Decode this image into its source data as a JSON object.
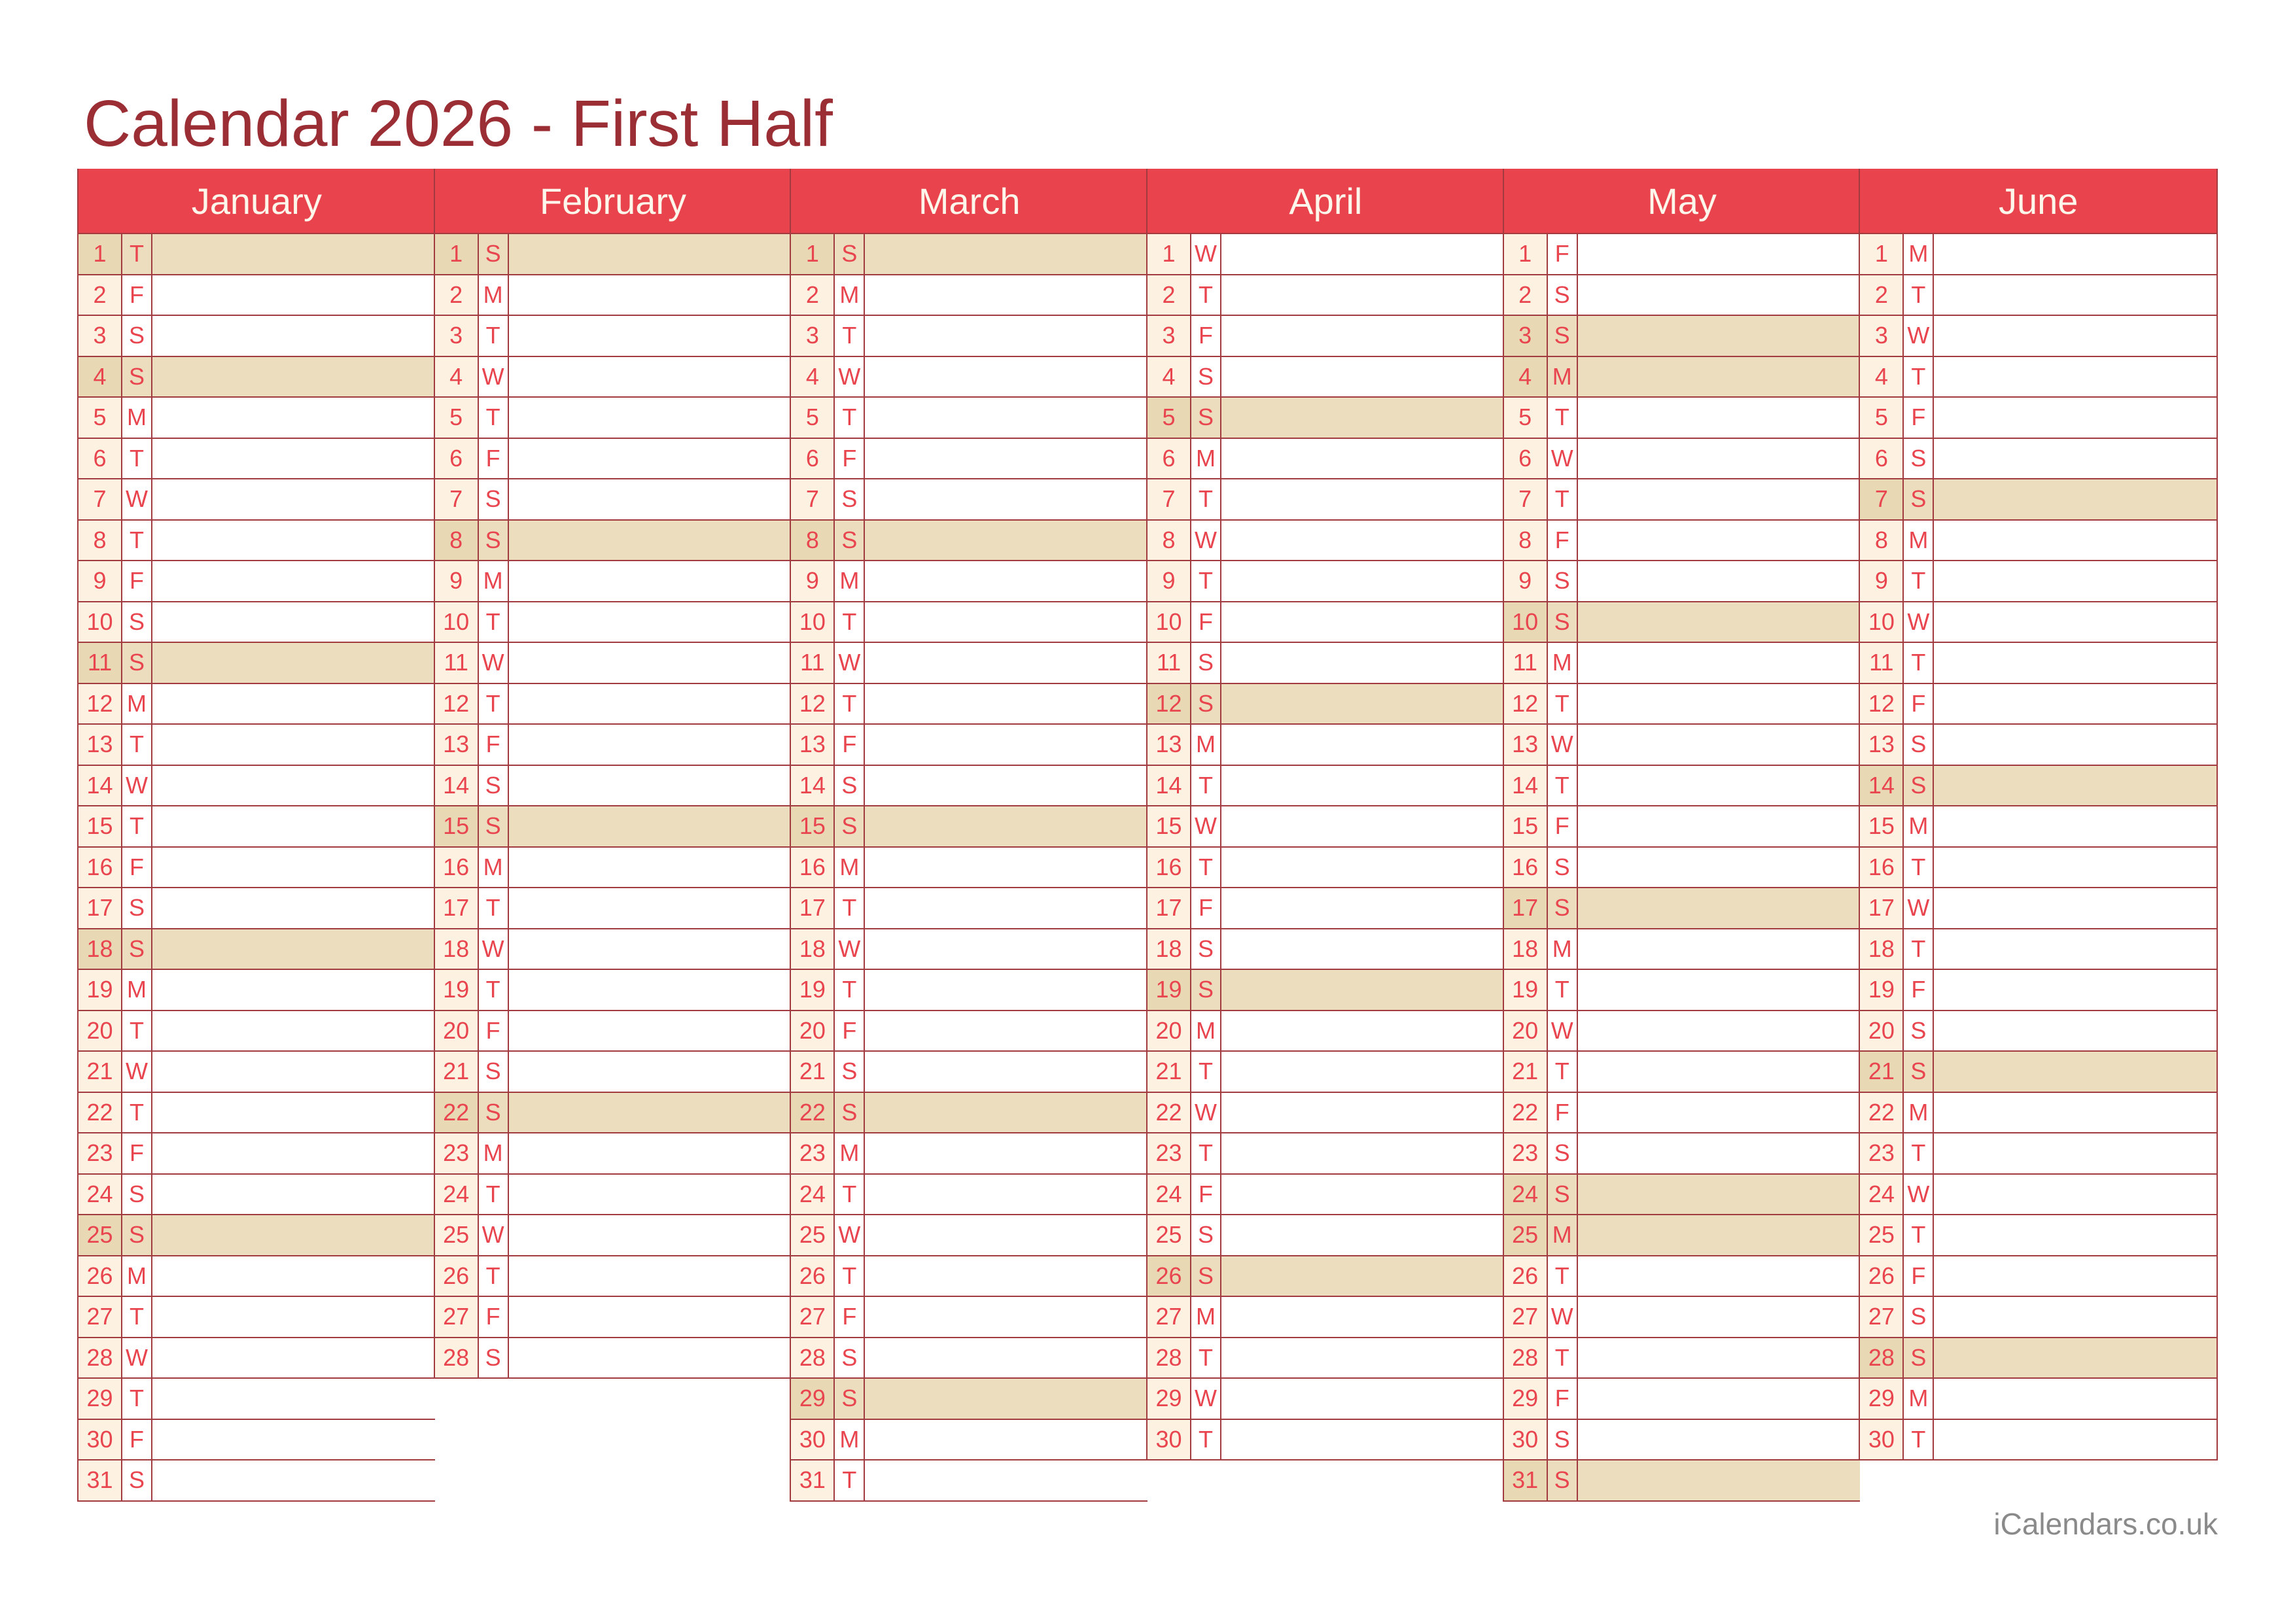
{
  "page": {
    "title": "Calendar 2026 - First Half",
    "footer": "iCalendars.co.uk"
  },
  "colors": {
    "title_text": "#9B2E34",
    "month_header_bg": "#E9434E",
    "month_header_text": "#FCF7EA",
    "grid_border": "#A23B40",
    "day_text": "#E8454F",
    "number_cell_bg": "#FDF1E1",
    "highlight_row_bg": "#ECDDBE",
    "highlight_number_cell_bg": "#E9D8B4",
    "notes_cell_bg": "#FFFFFF",
    "footer_text": "#8A8A8A"
  },
  "calendar": {
    "year": "2026",
    "months": [
      {
        "name": "January",
        "days": 31,
        "weekday_letters": "TFSSMTWTFSSMTWTFSSMTWTFSSMTWTFS",
        "highlighted_days": [
          1,
          4,
          11,
          18,
          25
        ]
      },
      {
        "name": "February",
        "days": 28,
        "weekday_letters": "SMTWTFSSMTWTFSSMTWTFSSMTWTFS",
        "highlighted_days": [
          1,
          8,
          15,
          22
        ]
      },
      {
        "name": "March",
        "days": 31,
        "weekday_letters": "SMTWTFSSMTWTFSSMTWTFSSMTWTFSSMT",
        "highlighted_days": [
          1,
          8,
          15,
          22,
          29
        ]
      },
      {
        "name": "April",
        "days": 30,
        "weekday_letters": "WTFSSMTWTFSSMTWTFSSMTWTFSSMTWT",
        "highlighted_days": [
          5,
          12,
          19,
          26
        ]
      },
      {
        "name": "May",
        "days": 31,
        "weekday_letters": "FSSMTWTFSSMTWTFSSMTWTFSSMTWTFSS",
        "highlighted_days": [
          3,
          4,
          10,
          17,
          24,
          25,
          31
        ]
      },
      {
        "name": "June",
        "days": 30,
        "weekday_letters": "MTWTFSSMTWTFSSMTWTFSSMTWTFSSMT",
        "highlighted_days": [
          7,
          14,
          21,
          28
        ]
      }
    ]
  }
}
